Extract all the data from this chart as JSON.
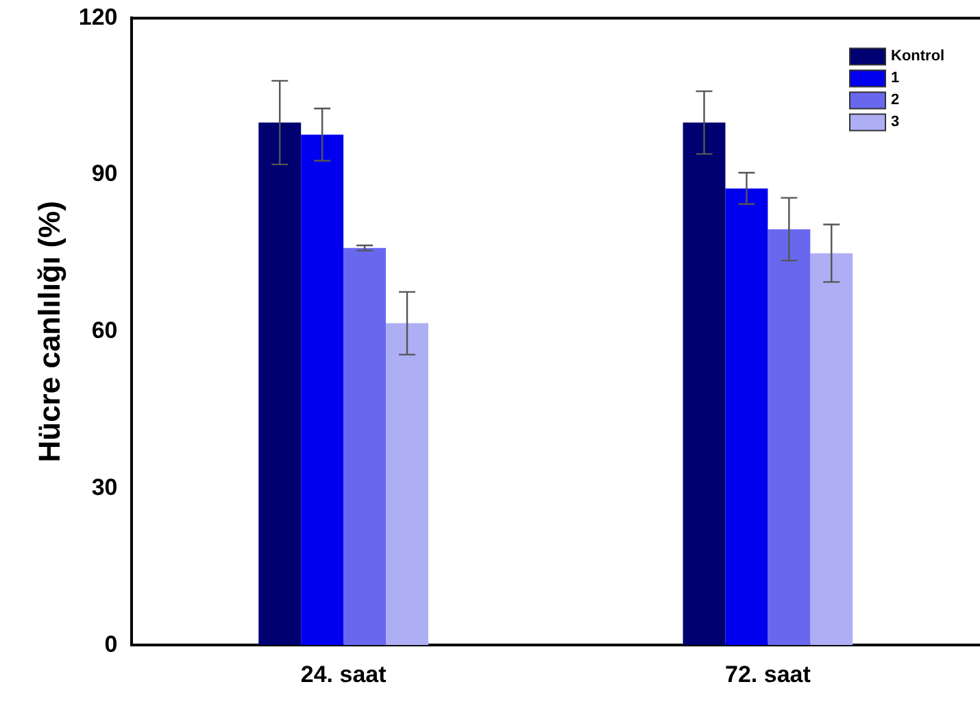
{
  "chart_data": {
    "type": "bar",
    "ylabel": "Hücre canlılığı (%)",
    "categories": [
      "24. saat",
      "72. saat"
    ],
    "series": [
      {
        "name": "Kontrol",
        "color": "#000070",
        "values": [
          100,
          100
        ],
        "errors": [
          8,
          6
        ]
      },
      {
        "name": "1",
        "color": "#0000ee",
        "values": [
          97.7,
          87.4
        ],
        "errors": [
          5,
          3
        ]
      },
      {
        "name": "2",
        "color": "#6868ee",
        "values": [
          76,
          79.6
        ],
        "errors": [
          0.5,
          6
        ]
      },
      {
        "name": "3",
        "color": "#aeaef4",
        "values": [
          61.6,
          75
        ],
        "errors": [
          6,
          5.5
        ]
      }
    ],
    "ylim": [
      0,
      120
    ],
    "yticks": [
      0,
      30,
      60,
      90,
      120
    ],
    "grid": false,
    "legend": "top right"
  }
}
